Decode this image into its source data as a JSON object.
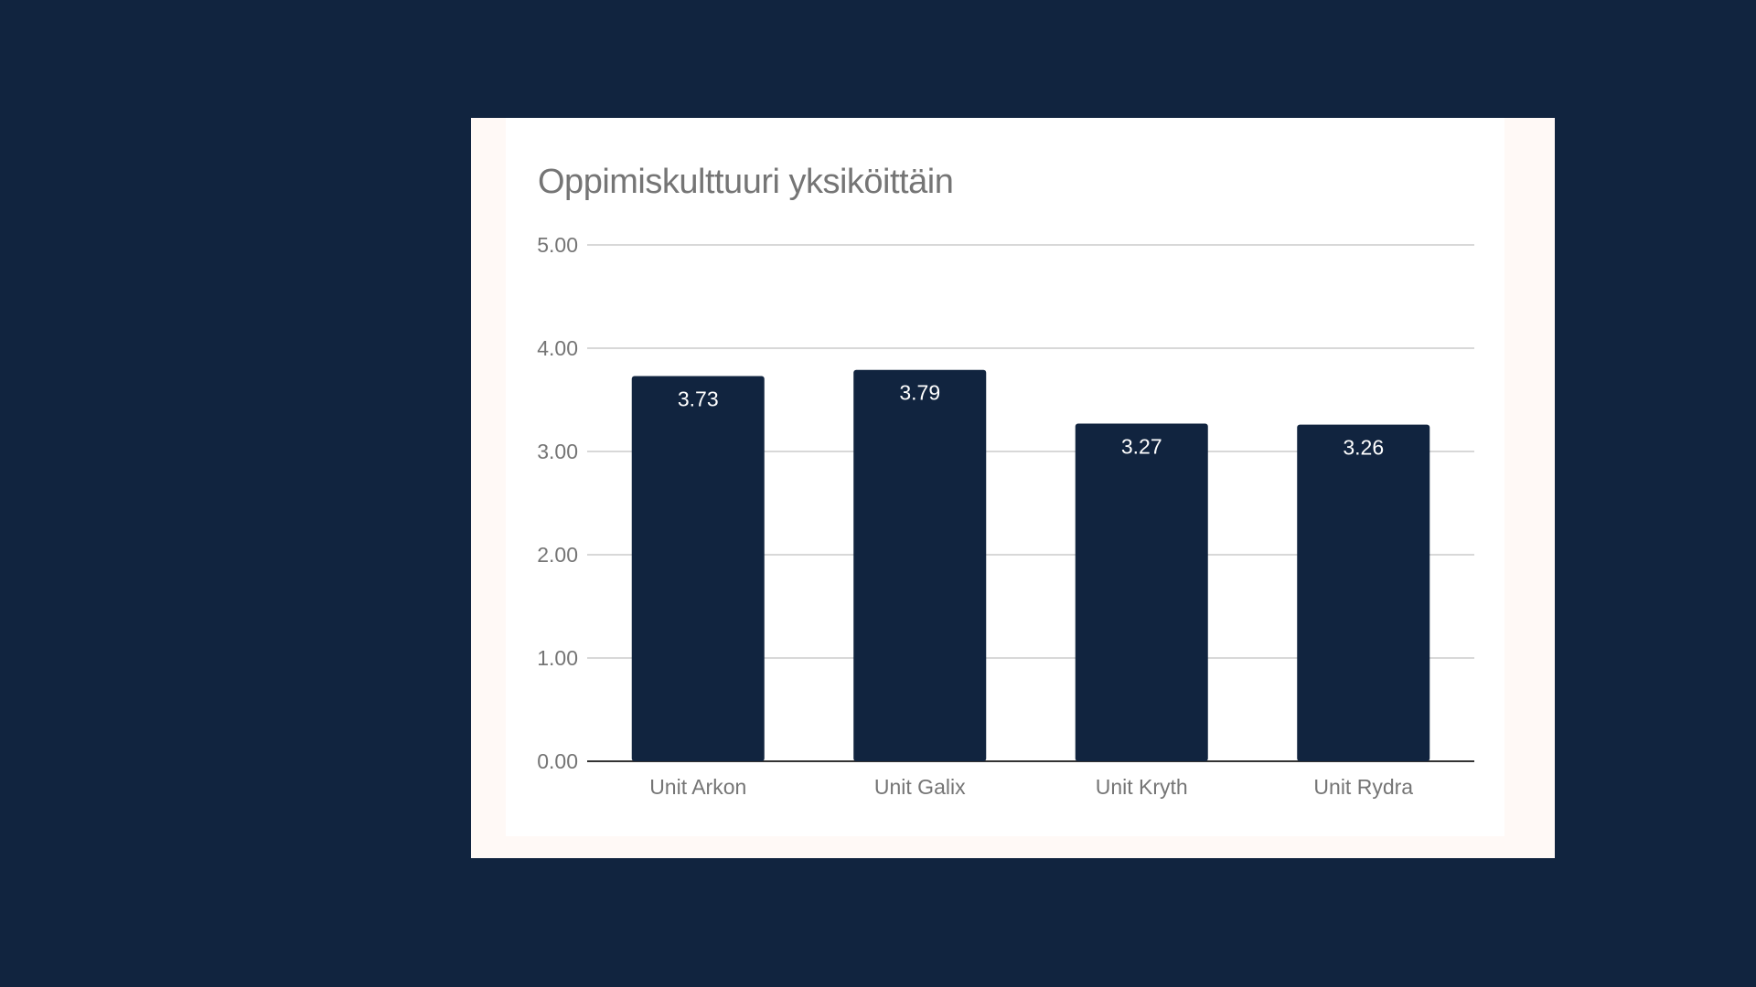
{
  "colors": {
    "background": "#11243f",
    "card": "#ffffff",
    "bar": "#11243f",
    "gridline": "#cccccc",
    "axis": "#333333",
    "text": "#757575",
    "data_label": "#ffffff"
  },
  "chart_data": {
    "type": "bar",
    "title": "Oppimiskulttuuri yksiköittäin",
    "xlabel": "",
    "ylabel": "",
    "categories": [
      "Unit Arkon",
      "Unit Galix",
      "Unit Kryth",
      "Unit Rydra"
    ],
    "values": [
      3.73,
      3.79,
      3.27,
      3.26
    ],
    "data_labels": [
      "3.73",
      "3.79",
      "3.27",
      "3.26"
    ],
    "ylim": [
      0,
      5
    ],
    "yticks": [
      "0.00",
      "1.00",
      "2.00",
      "3.00",
      "4.00",
      "5.00"
    ],
    "grid": true,
    "legend": "none"
  }
}
